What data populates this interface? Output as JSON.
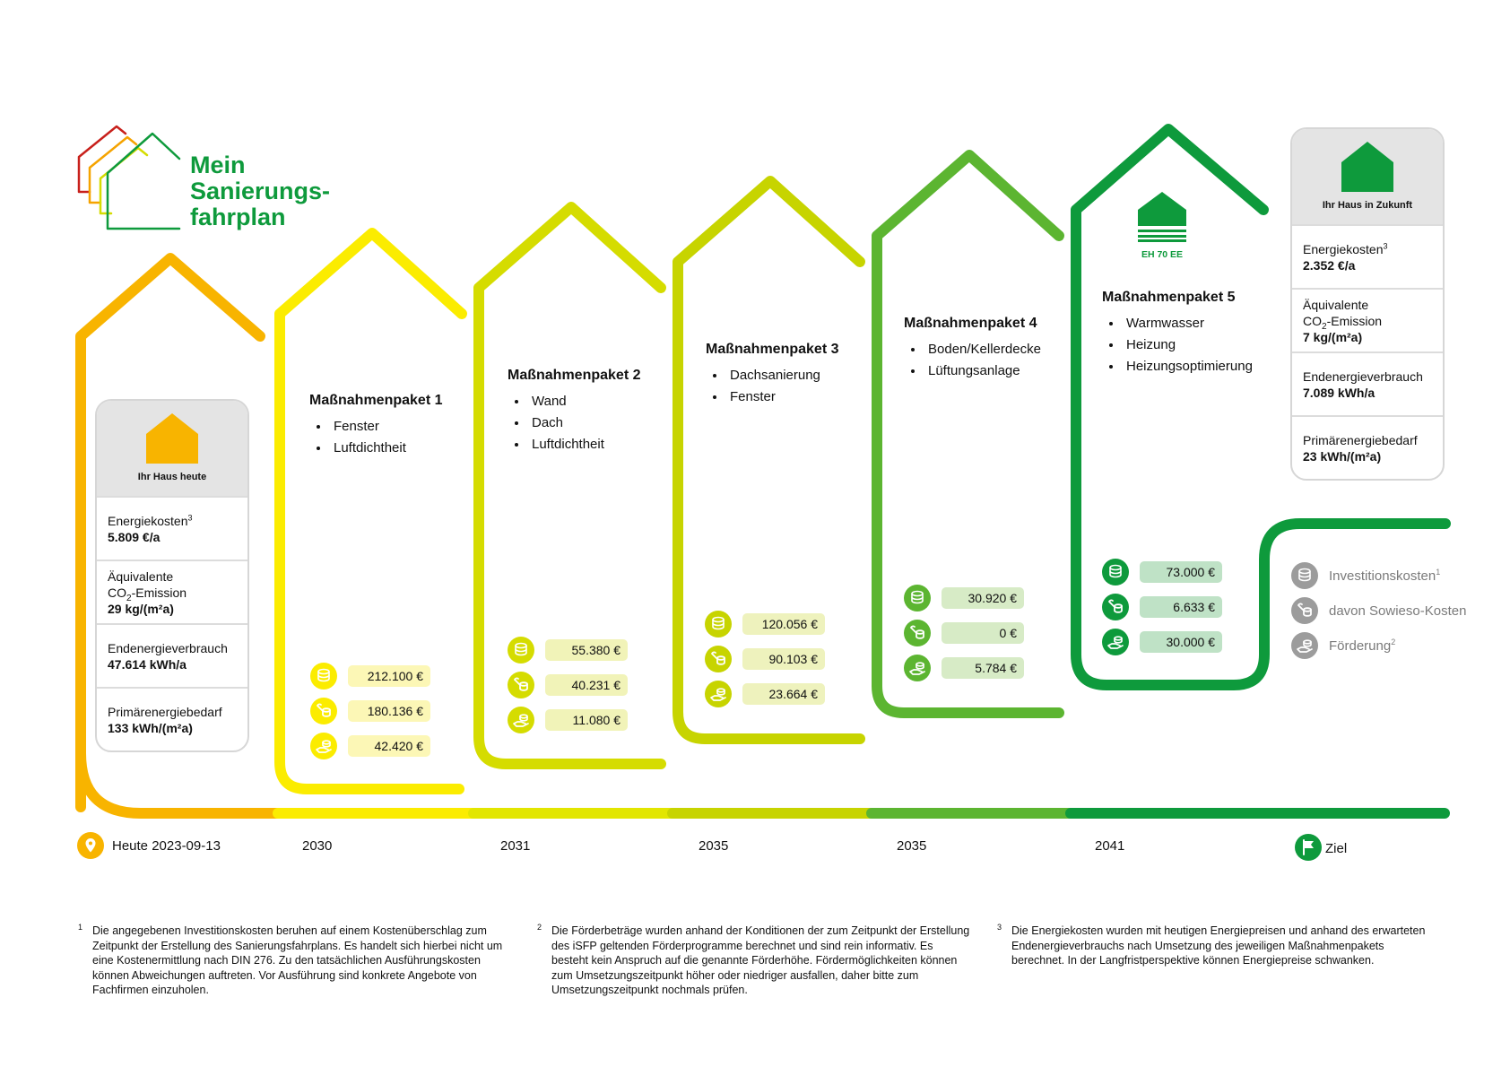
{
  "logo": {
    "line1": "Mein",
    "line2": "Sanierungs-",
    "line3": "fahrplan"
  },
  "colors": {
    "orange": "#f8b400",
    "yellow": "#fbec00",
    "lime1": "#d5dc00",
    "lime2": "#c7d400",
    "green1": "#5cb531",
    "green2": "#0e9a3c"
  },
  "today_card": {
    "label": "Ihr Haus heute",
    "energy_cost_label": "Energiekosten",
    "energy_cost_sup": "3",
    "energy_cost_value": "5.809 €/a",
    "co2_label_line1": "Äquivalente",
    "co2_label_pre": "CO",
    "co2_label_sub": "2",
    "co2_label_post": "-Emission",
    "co2_value": "29 kg/(m²a)",
    "final_energy_label": "Endenergieverbrauch",
    "final_energy_value": "47.614 kWh/a",
    "primary_energy_label": "Primärenergiebedarf",
    "primary_energy_value": "133 kWh/(m²a)"
  },
  "future_card": {
    "label": "Ihr Haus in Zukunft",
    "energy_cost_label": "Energiekosten",
    "energy_cost_sup": "3",
    "energy_cost_value": "2.352 €/a",
    "co2_label_line1": "Äquivalente",
    "co2_label_pre": "CO",
    "co2_label_sub": "2",
    "co2_label_post": "-Emission",
    "co2_value": "7 kg/(m²a)",
    "final_energy_label": "Endenergieverbrauch",
    "final_energy_value": "7.089 kWh/a",
    "primary_energy_label": "Primärenergiebedarf",
    "primary_energy_value": "23 kWh/(m²a)"
  },
  "packages": [
    {
      "title": "Maßnahmenpaket 1",
      "items": [
        "Fenster",
        "Luftdichtheit"
      ],
      "investment": "212.100 €",
      "sowieso": "180.136 €",
      "funding": "42.420 €",
      "year": "2030"
    },
    {
      "title": "Maßnahmenpaket 2",
      "items": [
        "Wand",
        "Dach",
        "Luftdichtheit"
      ],
      "investment": "55.380 €",
      "sowieso": "40.231 €",
      "funding": "11.080 €",
      "year": "2031"
    },
    {
      "title": "Maßnahmenpaket 3",
      "items": [
        "Dachsanierung",
        "Fenster"
      ],
      "investment": "120.056 €",
      "sowieso": "90.103 €",
      "funding": "23.664 €",
      "year": "2035"
    },
    {
      "title": "Maßnahmenpaket 4",
      "items": [
        "Boden/Kellerdecke",
        "Lüftungsanlage"
      ],
      "investment": "30.920 €",
      "sowieso": "0 €",
      "funding": "5.784 €",
      "year": "2035"
    },
    {
      "title": "Maßnahmenpaket 5",
      "items": [
        "Warmwasser",
        "Heizung",
        "Heizungsoptimierung"
      ],
      "investment": "73.000 €",
      "sowieso": "6.633 €",
      "funding": "30.000 €",
      "year": "2041"
    }
  ],
  "eh_badge": "EH 70 EE",
  "legend": {
    "investment": "Investitionskosten",
    "investment_sup": "1",
    "sowieso": "davon Sowieso-Kosten",
    "funding": "Förderung",
    "funding_sup": "2"
  },
  "timeline": {
    "today": "Heute 2023-09-13",
    "goal": "Ziel"
  },
  "footnotes": [
    {
      "num": "1",
      "text": "Die angegebenen Investitionskosten beruhen auf einem Kostenüberschlag zum Zeitpunkt der Erstellung des Sanierungsfahrplans. Es handelt sich hierbei nicht um eine Kostenermittlung nach DIN 276. Zu den tatsächlichen Ausführungskosten können Abweichungen auftreten. Vor Ausführung sind konkrete Angebote von Fachfirmen einzuholen."
    },
    {
      "num": "2",
      "text": "Die Förderbeträge wurden anhand der Konditionen der zum Zeitpunkt der Erstellung des iSFP geltenden Förderprogramme berechnet und sind rein informativ. Es besteht kein Anspruch auf die genannte Förderhöhe. Fördermöglichkeiten können zum Umsetzungszeitpunkt höher oder niedriger ausfallen, daher bitte zum Umsetzungszeitpunkt nochmals prüfen."
    },
    {
      "num": "3",
      "text": "Die Energiekosten wurden mit heutigen Energiepreisen und anhand des erwarteten Endenergieverbrauchs nach Umsetzung des jeweiligen Maßnahmenpakets berechnet. In der Langfristperspektive können Energiepreise schwanken."
    }
  ]
}
